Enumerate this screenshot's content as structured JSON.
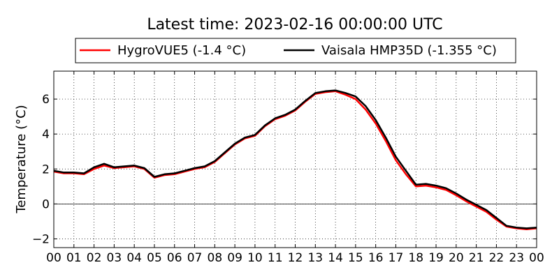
{
  "chart_data": {
    "type": "line",
    "title": "Latest time: 2023-02-16 00:00:00 UTC",
    "xlabel": "",
    "ylabel": "Temperature (°C)",
    "x_ticks": [
      "00",
      "01",
      "02",
      "03",
      "04",
      "05",
      "06",
      "07",
      "08",
      "09",
      "10",
      "11",
      "12",
      "13",
      "14",
      "15",
      "16",
      "17",
      "18",
      "19",
      "20",
      "21",
      "22",
      "23",
      "00"
    ],
    "y_ticks": [
      -2,
      0,
      2,
      4,
      6
    ],
    "xlim": [
      0,
      24
    ],
    "ylim": [
      -2.5,
      7.6
    ],
    "grid": true,
    "legend_position": "top-center",
    "zero_line": true,
    "x": [
      0,
      0.5,
      1,
      1.5,
      2,
      2.5,
      3,
      3.5,
      4,
      4.5,
      5,
      5.5,
      6,
      6.5,
      7,
      7.5,
      8,
      8.5,
      9,
      9.5,
      10,
      10.5,
      11,
      11.5,
      12,
      12.5,
      13,
      13.5,
      14,
      14.5,
      15,
      15.5,
      16,
      16.5,
      17,
      17.5,
      18,
      18.5,
      19,
      19.5,
      20,
      20.5,
      21,
      21.5,
      22,
      22.5,
      23,
      23.5,
      24
    ],
    "series": [
      {
        "name": "HygroVUE5 (-1.4 °C)",
        "color": "#ff0000",
        "values": [
          1.85,
          1.75,
          1.75,
          1.7,
          2.0,
          2.2,
          2.05,
          2.1,
          2.15,
          2.0,
          1.5,
          1.65,
          1.7,
          1.85,
          2.0,
          2.1,
          2.4,
          2.9,
          3.4,
          3.75,
          3.9,
          4.45,
          4.85,
          5.05,
          5.35,
          5.85,
          6.3,
          6.4,
          6.45,
          6.25,
          6.0,
          5.4,
          4.6,
          3.6,
          2.5,
          1.7,
          1.0,
          1.05,
          0.95,
          0.8,
          0.5,
          0.15,
          -0.15,
          -0.45,
          -0.9,
          -1.3,
          -1.4,
          -1.45,
          -1.4
        ]
      },
      {
        "name": "Vaisala HMP35D (-1.355 °C)",
        "color": "#000000",
        "values": [
          1.9,
          1.8,
          1.8,
          1.75,
          2.1,
          2.3,
          2.1,
          2.15,
          2.2,
          2.05,
          1.55,
          1.7,
          1.75,
          1.9,
          2.05,
          2.15,
          2.45,
          2.95,
          3.45,
          3.8,
          3.95,
          4.5,
          4.9,
          5.1,
          5.4,
          5.9,
          6.35,
          6.45,
          6.5,
          6.35,
          6.15,
          5.6,
          4.8,
          3.8,
          2.7,
          1.9,
          1.1,
          1.15,
          1.05,
          0.9,
          0.6,
          0.25,
          -0.05,
          -0.35,
          -0.8,
          -1.25,
          -1.35,
          -1.4,
          -1.35
        ]
      }
    ]
  }
}
